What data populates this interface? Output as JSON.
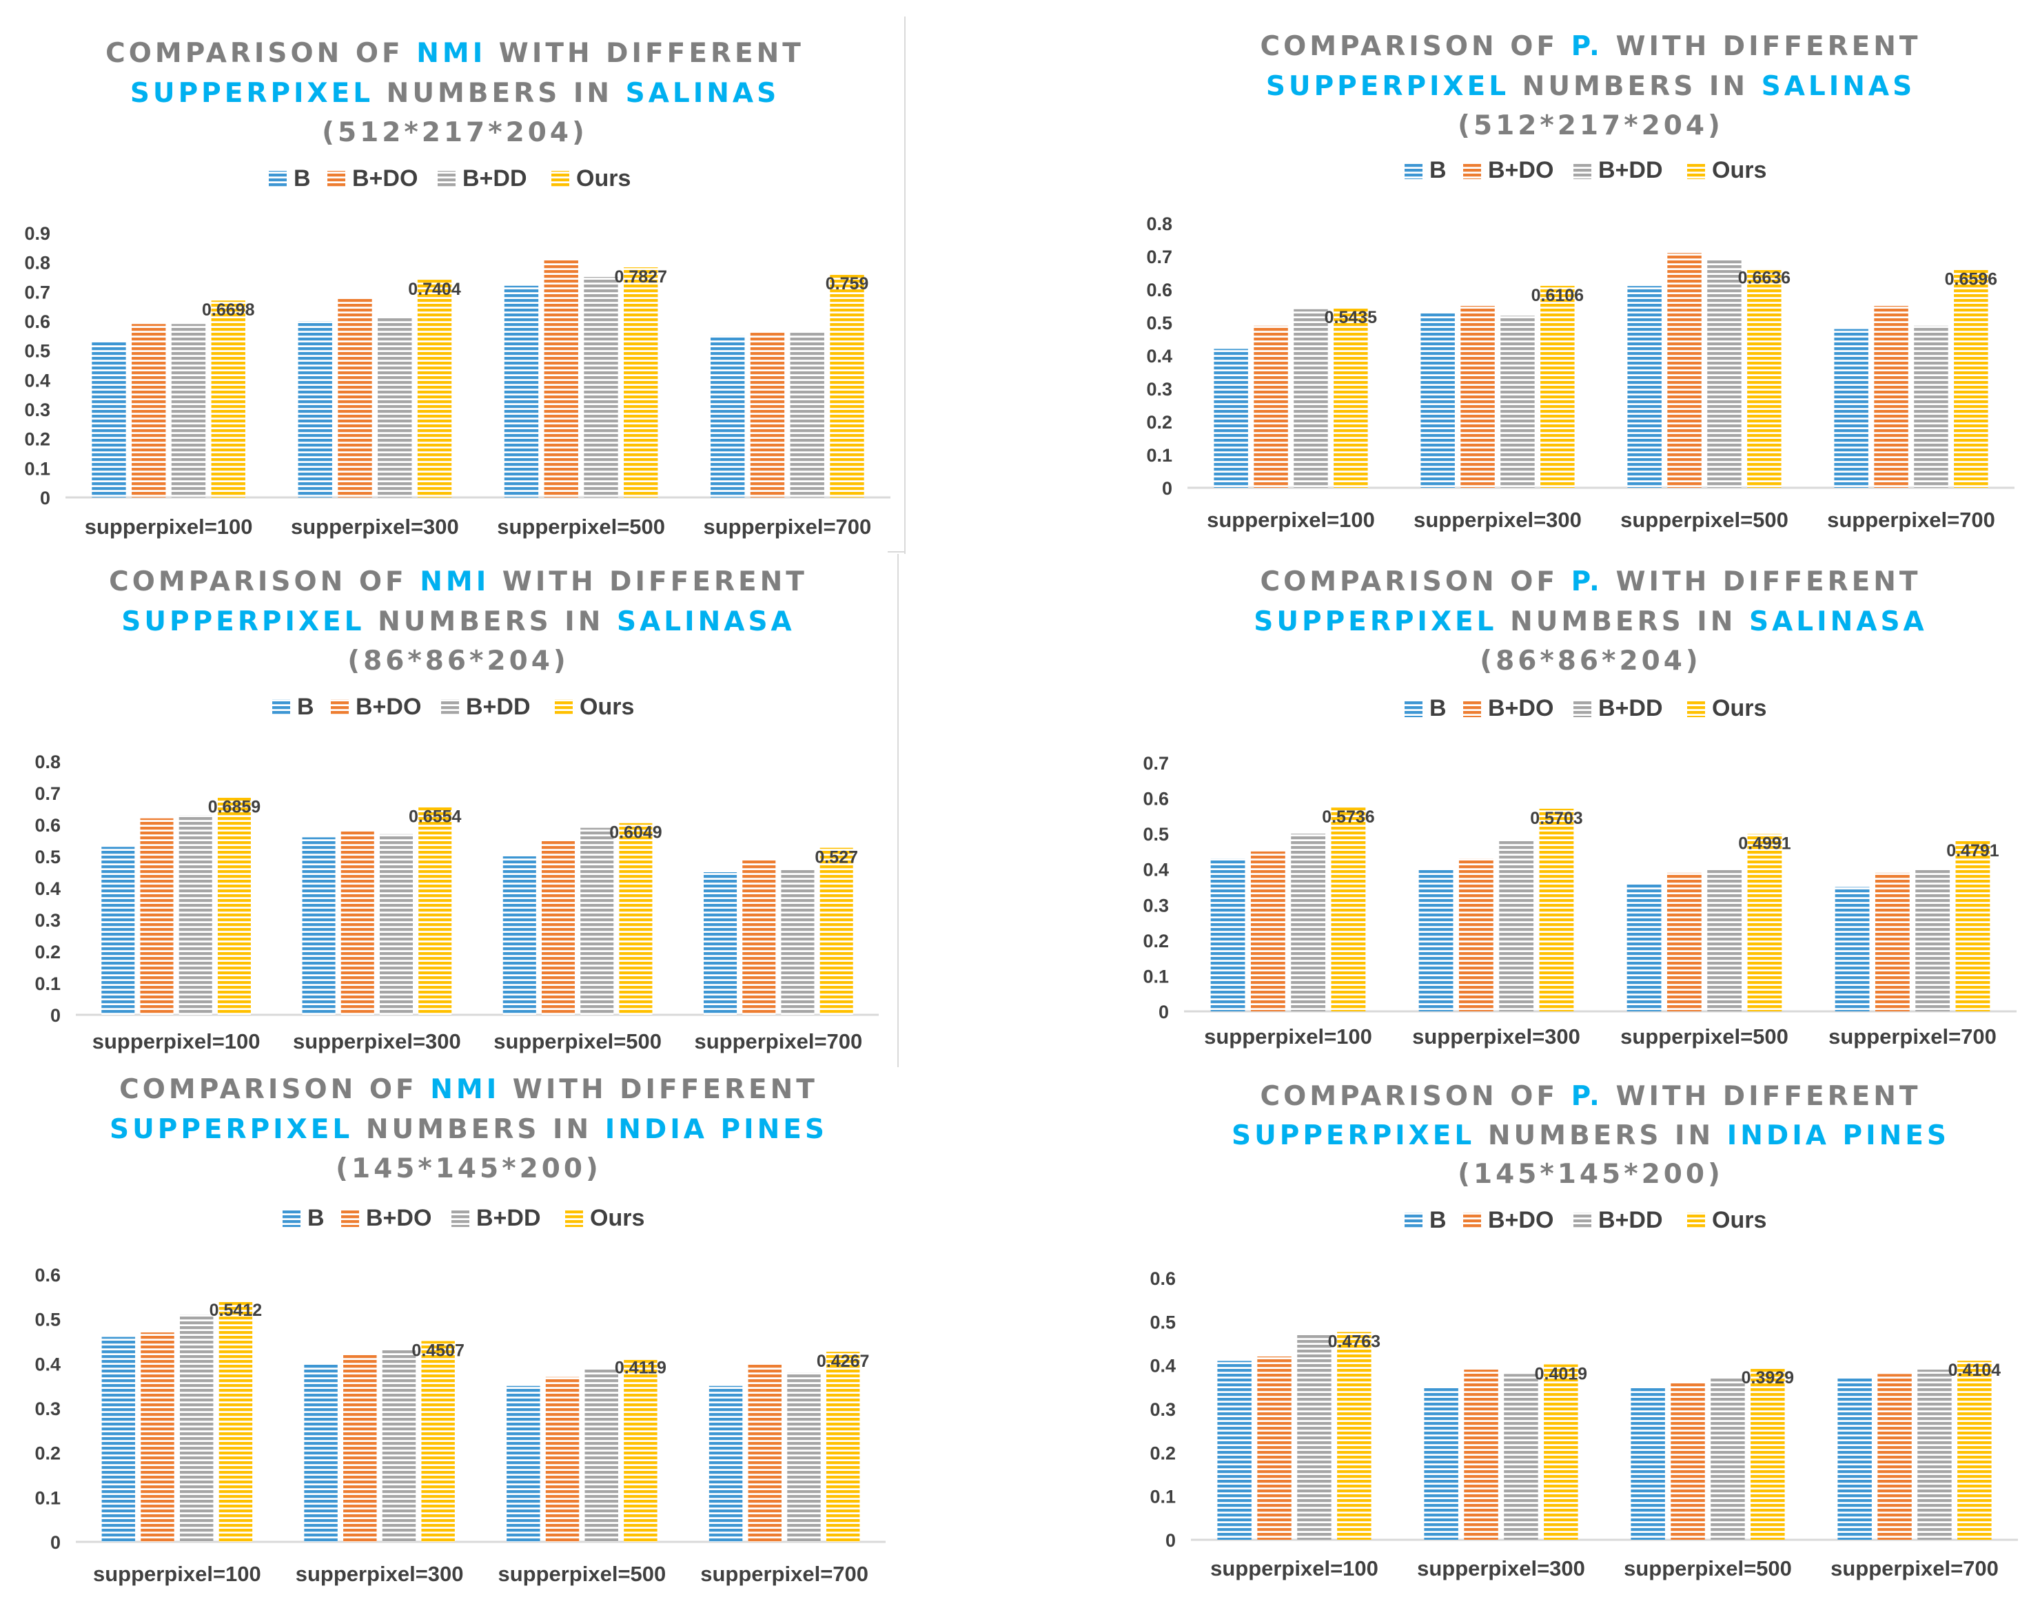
{
  "figure": {
    "colors": {
      "title_gray": "#7f7f7f",
      "title_blue": "#00b0f0",
      "axis_text": "#404040",
      "axis_line": "#d9d9d9",
      "series": {
        "B": "#3d96d3",
        "B+DO": "#ed7d31",
        "B+DD": "#a5a5a5",
        "Ours": "#ffc000"
      }
    }
  },
  "chart_data": [
    {
      "type": "bar",
      "title_segments": [
        [
          {
            "text": "COMPARISON OF ",
            "hl": false
          },
          {
            "text": "NMI",
            "hl": true
          },
          {
            "text": " WITH DIFFERENT",
            "hl": false
          }
        ],
        [
          {
            "text": "SUPPERPIXEL",
            "hl": true
          },
          {
            "text": " NUMBERS IN ",
            "hl": false
          },
          {
            "text": "SALINAS",
            "hl": true
          }
        ],
        [
          {
            "text": "(512*217*204)",
            "hl": false
          }
        ]
      ],
      "legend": [
        "B",
        "B+DO",
        "B+DD",
        "Ours"
      ],
      "categories": [
        "supperpixel=100",
        "supperpixel=300",
        "supperpixel=500",
        "supperpixel=700"
      ],
      "series": [
        {
          "name": "B",
          "values": [
            0.53,
            0.6,
            0.72,
            0.55
          ]
        },
        {
          "name": "B+DO",
          "values": [
            0.59,
            0.68,
            0.81,
            0.56
          ]
        },
        {
          "name": "B+DD",
          "values": [
            0.59,
            0.61,
            0.75,
            0.56
          ]
        },
        {
          "name": "Ours",
          "values": [
            0.6698,
            0.7404,
            0.7827,
            0.759
          ]
        }
      ],
      "data_labels": [
        "0.6698",
        "0.7404",
        "0.7827",
        "0.759"
      ],
      "ylim": [
        0,
        0.9
      ],
      "yticks": [
        "0",
        "0.1",
        "0.2",
        "0.3",
        "0.4",
        "0.5",
        "0.6",
        "0.7",
        "0.8",
        "0.9"
      ],
      "xlabel": "",
      "ylabel": ""
    },
    {
      "type": "bar",
      "title_segments": [
        [
          {
            "text": "COMPARISON OF ",
            "hl": false
          },
          {
            "text": "P.",
            "hl": true
          },
          {
            "text": " WITH DIFFERENT",
            "hl": false
          }
        ],
        [
          {
            "text": "SUPPERPIXEL",
            "hl": true
          },
          {
            "text": " NUMBERS IN ",
            "hl": false
          },
          {
            "text": "SALINAS",
            "hl": true
          }
        ],
        [
          {
            "text": "(512*217*204)",
            "hl": false
          }
        ]
      ],
      "legend": [
        "B",
        "B+DO",
        "B+DD",
        "Ours"
      ],
      "categories": [
        "supperpixel=100",
        "supperpixel=300",
        "supperpixel=500",
        "supperpixel=700"
      ],
      "series": [
        {
          "name": "B",
          "values": [
            0.42,
            0.53,
            0.61,
            0.48
          ]
        },
        {
          "name": "B+DO",
          "values": [
            0.49,
            0.55,
            0.71,
            0.55
          ]
        },
        {
          "name": "B+DD",
          "values": [
            0.54,
            0.52,
            0.69,
            0.49
          ]
        },
        {
          "name": "Ours",
          "values": [
            0.5435,
            0.6106,
            0.6636,
            0.6596
          ]
        }
      ],
      "data_labels": [
        "0.5435",
        "0.6106",
        "0.6636",
        "0.6596"
      ],
      "ylim": [
        0,
        0.8
      ],
      "yticks": [
        "0",
        "0.1",
        "0.2",
        "0.3",
        "0.4",
        "0.5",
        "0.6",
        "0.7",
        "0.8"
      ],
      "xlabel": "",
      "ylabel": ""
    },
    {
      "type": "bar",
      "title_segments": [
        [
          {
            "text": "COMPARISON OF ",
            "hl": false
          },
          {
            "text": "NMI",
            "hl": true
          },
          {
            "text": " WITH DIFFERENT",
            "hl": false
          }
        ],
        [
          {
            "text": "SUPPERPIXEL",
            "hl": true
          },
          {
            "text": " NUMBERS IN ",
            "hl": false
          },
          {
            "text": "SALINASA",
            "hl": true
          }
        ],
        [
          {
            "text": "(86*86*204)",
            "hl": false
          }
        ]
      ],
      "legend": [
        "B",
        "B+DO",
        "B+DD",
        "Ours"
      ],
      "categories": [
        "supperpixel=100",
        "supperpixel=300",
        "supperpixel=500",
        "supperpixel=700"
      ],
      "series": [
        {
          "name": "B",
          "values": [
            0.53,
            0.56,
            0.5,
            0.45
          ]
        },
        {
          "name": "B+DO",
          "values": [
            0.62,
            0.58,
            0.55,
            0.49
          ]
        },
        {
          "name": "B+DD",
          "values": [
            0.63,
            0.57,
            0.59,
            0.46
          ]
        },
        {
          "name": "Ours",
          "values": [
            0.6859,
            0.6554,
            0.6049,
            0.527
          ]
        }
      ],
      "data_labels": [
        "0.6859",
        "0.6554",
        "0.6049",
        "0.527"
      ],
      "ylim": [
        0,
        0.8
      ],
      "yticks": [
        "0",
        "0.1",
        "0.2",
        "0.3",
        "0.4",
        "0.5",
        "0.6",
        "0.7",
        "0.8"
      ],
      "xlabel": "",
      "ylabel": ""
    },
    {
      "type": "bar",
      "title_segments": [
        [
          {
            "text": "COMPARISON OF ",
            "hl": false
          },
          {
            "text": "P.",
            "hl": true
          },
          {
            "text": " WITH DIFFERENT",
            "hl": false
          }
        ],
        [
          {
            "text": "SUPPERPIXEL",
            "hl": true
          },
          {
            "text": " NUMBERS IN ",
            "hl": false
          },
          {
            "text": "SALINASA",
            "hl": true
          }
        ],
        [
          {
            "text": "(86*86*204)",
            "hl": false
          }
        ]
      ],
      "legend": [
        "B",
        "B+DO",
        "B+DD",
        "Ours"
      ],
      "categories": [
        "supperpixel=100",
        "supperpixel=300",
        "supperpixel=500",
        "supperpixel=700"
      ],
      "series": [
        {
          "name": "B",
          "values": [
            0.43,
            0.4,
            0.36,
            0.35
          ]
        },
        {
          "name": "B+DO",
          "values": [
            0.45,
            0.43,
            0.39,
            0.39
          ]
        },
        {
          "name": "B+DD",
          "values": [
            0.5,
            0.48,
            0.4,
            0.4
          ]
        },
        {
          "name": "Ours",
          "values": [
            0.5736,
            0.5703,
            0.4991,
            0.4791
          ]
        }
      ],
      "data_labels": [
        "0.5736",
        "0.5703",
        "0.4991",
        "0.4791"
      ],
      "ylim": [
        0,
        0.7
      ],
      "yticks": [
        "0",
        "0.1",
        "0.2",
        "0.3",
        "0.4",
        "0.5",
        "0.6",
        "0.7"
      ],
      "xlabel": "",
      "ylabel": ""
    },
    {
      "type": "bar",
      "title_segments": [
        [
          {
            "text": "COMPARISON OF ",
            "hl": false
          },
          {
            "text": "NMI",
            "hl": true
          },
          {
            "text": " WITH DIFFERENT",
            "hl": false
          }
        ],
        [
          {
            "text": "SUPPERPIXEL",
            "hl": true
          },
          {
            "text": " NUMBERS IN ",
            "hl": false
          },
          {
            "text": "INDIA PINES",
            "hl": true
          }
        ],
        [
          {
            "text": "(145*145*200)",
            "hl": false
          }
        ]
      ],
      "legend": [
        "B",
        "B+DO",
        "B+DD",
        "Ours"
      ],
      "categories": [
        "supperpixel=100",
        "supperpixel=300",
        "supperpixel=500",
        "supperpixel=700"
      ],
      "series": [
        {
          "name": "B",
          "values": [
            0.46,
            0.4,
            0.35,
            0.35
          ]
        },
        {
          "name": "B+DO",
          "values": [
            0.47,
            0.42,
            0.37,
            0.4
          ]
        },
        {
          "name": "B+DD",
          "values": [
            0.51,
            0.43,
            0.39,
            0.38
          ]
        },
        {
          "name": "Ours",
          "values": [
            0.5412,
            0.4507,
            0.4119,
            0.4267
          ]
        }
      ],
      "data_labels": [
        "0.5412",
        "0.4507",
        "0.4119",
        "0.4267"
      ],
      "ylim": [
        0,
        0.6
      ],
      "yticks": [
        "0",
        "0.1",
        "0.2",
        "0.3",
        "0.4",
        "0.5",
        "0.6"
      ],
      "xlabel": "",
      "ylabel": ""
    },
    {
      "type": "bar",
      "title_segments": [
        [
          {
            "text": "COMPARISON OF ",
            "hl": false
          },
          {
            "text": "P.",
            "hl": true
          },
          {
            "text": " WITH DIFFERENT",
            "hl": false
          }
        ],
        [
          {
            "text": "SUPPERPIXEL",
            "hl": true
          },
          {
            "text": " NUMBERS IN ",
            "hl": false
          },
          {
            "text": "INDIA PINES",
            "hl": true
          }
        ],
        [
          {
            "text": "(145*145*200)",
            "hl": false
          }
        ]
      ],
      "legend": [
        "B",
        "B+DO",
        "B+DD",
        "Ours"
      ],
      "categories": [
        "supperpixel=100",
        "supperpixel=300",
        "supperpixel=500",
        "supperpixel=700"
      ],
      "series": [
        {
          "name": "B",
          "values": [
            0.41,
            0.35,
            0.35,
            0.37
          ]
        },
        {
          "name": "B+DO",
          "values": [
            0.42,
            0.39,
            0.36,
            0.38
          ]
        },
        {
          "name": "B+DD",
          "values": [
            0.47,
            0.38,
            0.37,
            0.39
          ]
        },
        {
          "name": "Ours",
          "values": [
            0.4763,
            0.4019,
            0.3929,
            0.4104
          ]
        }
      ],
      "data_labels": [
        "0.4763",
        "0.4019",
        "0.3929",
        "0.4104"
      ],
      "ylim": [
        0,
        0.6
      ],
      "yticks": [
        "0",
        "0.1",
        "0.2",
        "0.3",
        "0.4",
        "0.5",
        "0.6"
      ],
      "xlabel": "",
      "ylabel": ""
    }
  ]
}
